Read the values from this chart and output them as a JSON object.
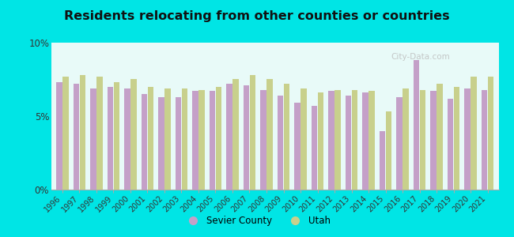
{
  "title": "Residents relocating from other counties or countries",
  "years": [
    1996,
    1997,
    1998,
    1999,
    2000,
    2001,
    2002,
    2003,
    2004,
    2005,
    2006,
    2007,
    2008,
    2009,
    2010,
    2011,
    2012,
    2013,
    2014,
    2015,
    2016,
    2017,
    2018,
    2019,
    2020,
    2021
  ],
  "sevier": [
    7.3,
    7.2,
    6.9,
    7.0,
    6.9,
    6.5,
    6.3,
    6.3,
    6.7,
    6.7,
    7.2,
    7.1,
    6.8,
    6.4,
    5.9,
    5.7,
    6.7,
    6.4,
    6.6,
    4.0,
    6.3,
    8.8,
    6.7,
    6.2,
    6.9,
    6.8
  ],
  "utah": [
    7.7,
    7.8,
    7.7,
    7.3,
    7.5,
    7.0,
    6.9,
    6.9,
    6.8,
    7.0,
    7.5,
    7.8,
    7.5,
    7.2,
    6.9,
    6.6,
    6.8,
    6.8,
    6.7,
    5.3,
    6.9,
    6.8,
    7.2,
    7.0,
    7.7,
    7.7
  ],
  "sevier_color": "#c4a0c8",
  "utah_color": "#c8d08c",
  "background_color": "#e8faf8",
  "outer_background": "#00e5e5",
  "ylim": [
    0,
    10
  ],
  "yticks": [
    0,
    5,
    10
  ],
  "ytick_labels": [
    "0%",
    "5%",
    "10%"
  ]
}
